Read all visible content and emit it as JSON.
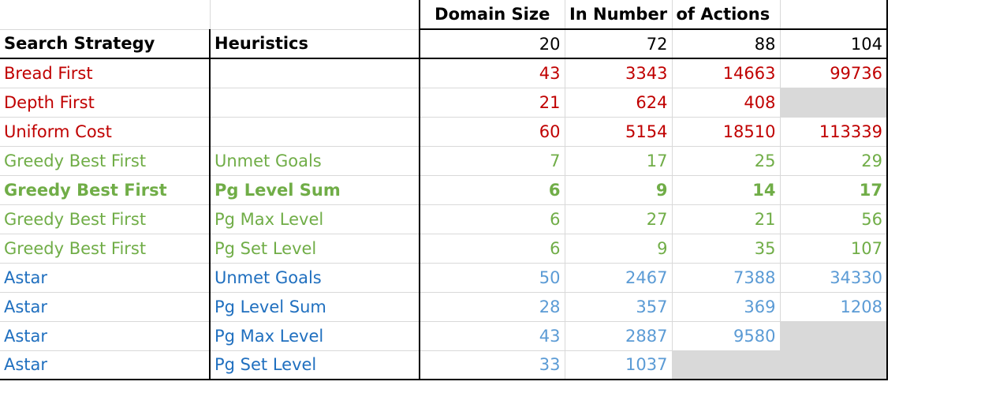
{
  "header": {
    "domain_size_label": "Domain Size",
    "in_number_label": "In Number",
    "of_actions_label": "of Actions",
    "search_strategy_label": "Search Strategy",
    "heuristics_label": "Heuristics",
    "sizes": [
      "20",
      "72",
      "88",
      "104"
    ]
  },
  "rows": [
    {
      "strategy": "Bread First",
      "heuristic": "",
      "values": [
        "43",
        "3343",
        "14663",
        "99736"
      ]
    },
    {
      "strategy": "Depth First",
      "heuristic": "",
      "values": [
        "21",
        "624",
        "408",
        ""
      ]
    },
    {
      "strategy": "Uniform Cost",
      "heuristic": "",
      "values": [
        "60",
        "5154",
        "18510",
        "113339"
      ]
    },
    {
      "strategy": "Greedy Best First",
      "heuristic": "Unmet Goals",
      "values": [
        "7",
        "17",
        "25",
        "29"
      ]
    },
    {
      "strategy": "Greedy Best First",
      "heuristic": "Pg Level Sum",
      "values": [
        "6",
        "9",
        "14",
        "17"
      ]
    },
    {
      "strategy": "Greedy Best First",
      "heuristic": "Pg Max Level",
      "values": [
        "6",
        "27",
        "21",
        "56"
      ]
    },
    {
      "strategy": "Greedy Best First",
      "heuristic": "Pg Set Level",
      "values": [
        "6",
        "9",
        "35",
        "107"
      ]
    },
    {
      "strategy": "Astar",
      "heuristic": "Unmet Goals",
      "values": [
        "50",
        "2467",
        "7388",
        "34330"
      ]
    },
    {
      "strategy": "Astar",
      "heuristic": "Pg Level Sum",
      "values": [
        "28",
        "357",
        "369",
        "1208"
      ]
    },
    {
      "strategy": "Astar",
      "heuristic": "Pg Max Level",
      "values": [
        "43",
        "2887",
        "9580",
        ""
      ]
    },
    {
      "strategy": "Astar",
      "heuristic": "Pg Set Level",
      "values": [
        "33",
        "1037",
        "",
        ""
      ]
    }
  ],
  "colors": {
    "uninformed": "#c00000",
    "greedy": "#70ad47",
    "astar": "#2e75b6",
    "empty_cell": "#d9d9d9"
  }
}
